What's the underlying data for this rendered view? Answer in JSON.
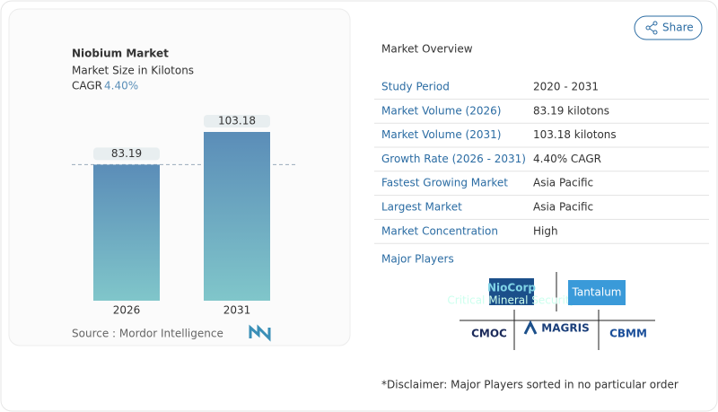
{
  "chart_data": {
    "type": "bar",
    "title": "Niobium Market",
    "subtitle": "Market Size in Kilotons",
    "cagr_label": "CAGR",
    "cagr": "4.40%",
    "categories": [
      "2026",
      "2031"
    ],
    "values": [
      83.19,
      103.18
    ],
    "color_top": "#5b8db8",
    "color_bottom": "#80c6ca",
    "source": "Source :  Mordor Intelligence"
  },
  "share": "Share",
  "overview": {
    "title": "Market Overview",
    "rows": [
      [
        "Study Period",
        "2020 - 2031"
      ],
      [
        "Market Volume (2026)",
        "83.19 kilotons"
      ],
      [
        "Market Volume (2031)",
        "103.18 kilotons"
      ],
      [
        "Growth Rate (2026 - 2031)",
        "4.40% CAGR"
      ],
      [
        "Fastest Growing Market",
        "Asia Pacific"
      ],
      [
        "Largest Market",
        "Asia Pacific"
      ],
      [
        "Market Concentration",
        "High"
      ]
    ]
  },
  "players": {
    "title": "Major Players",
    "logos": [
      "NioCorp",
      "Critical Mineral Security",
      "Tantalum",
      "CMOC",
      "MAGRIS",
      "CBMM"
    ]
  },
  "disclaimer": "*Disclaimer: Major Players sorted in no particular order"
}
